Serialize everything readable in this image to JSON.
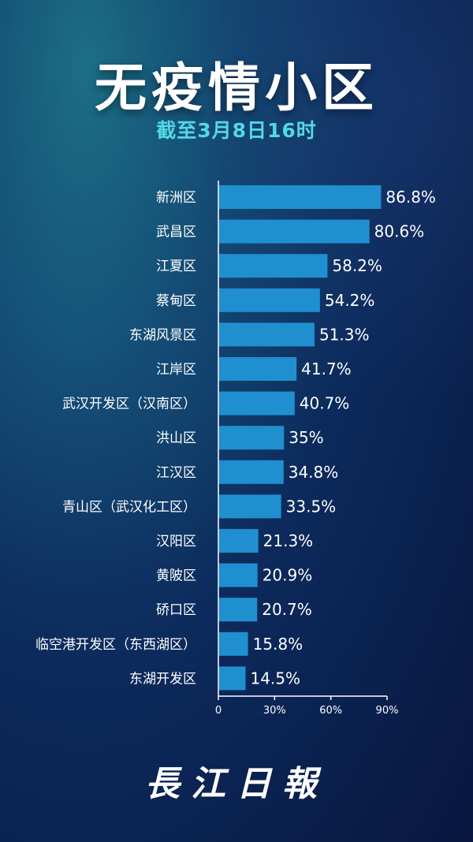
{
  "title": "无疫情小区",
  "subtitle": "截至3月8日16时",
  "logo": "長江日報",
  "chart_data": {
    "type": "bar",
    "orientation": "horizontal",
    "title": "无疫情小区",
    "subtitle": "截至3月8日16时",
    "categories": [
      "新洲区",
      "武昌区",
      "江夏区",
      "蔡甸区",
      "东湖风景区",
      "江岸区",
      "武汉开发区（汉南区）",
      "洪山区",
      "江汉区",
      "青山区（武汉化工区）",
      "汉阳区",
      "黄陂区",
      "硚口区",
      "临空港开发区（东西湖区）",
      "东湖开发区"
    ],
    "values": [
      86.8,
      80.6,
      58.2,
      54.2,
      51.3,
      41.7,
      40.7,
      35,
      34.8,
      33.5,
      21.3,
      20.9,
      20.7,
      15.8,
      14.5
    ],
    "value_labels": [
      "86.8%",
      "80.6%",
      "58.2%",
      "54.2%",
      "51.3%",
      "41.7%",
      "40.7%",
      "35%",
      "34.8%",
      "33.5%",
      "21.3%",
      "20.9%",
      "20.7%",
      "15.8%",
      "14.5%"
    ],
    "xlim": [
      0,
      90
    ],
    "xticks": [
      "0",
      "30%",
      "60%",
      "90%"
    ],
    "xtick_values": [
      0,
      30,
      60,
      90
    ],
    "bar_color": "#1f8fd0",
    "grid": false
  }
}
